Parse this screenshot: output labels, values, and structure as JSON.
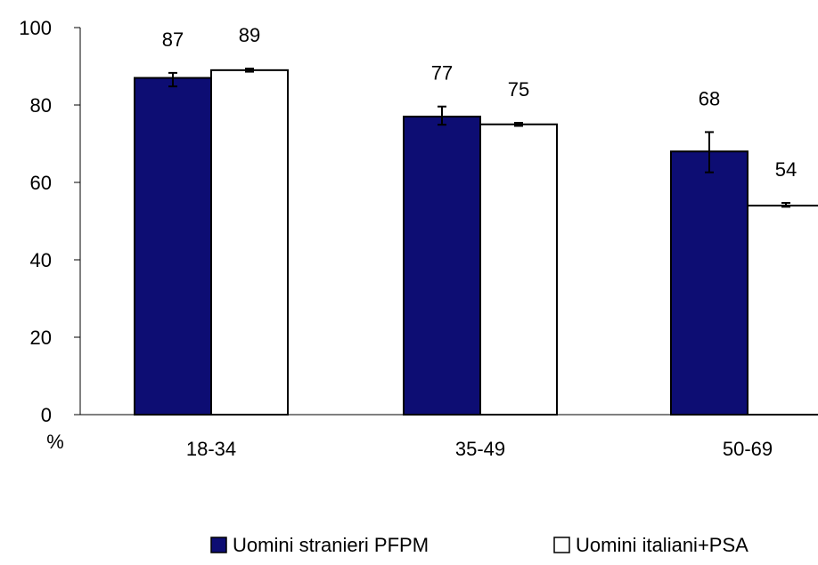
{
  "chart_data": {
    "type": "bar",
    "ylabel": "%",
    "ylim": [
      0,
      100
    ],
    "yticks": [
      "0",
      "20",
      "40",
      "60",
      "80",
      "100"
    ],
    "categories": [
      "18-34",
      "35-49",
      "50-69"
    ],
    "series": [
      {
        "name": "Uomini stranieri PFPM",
        "color": "#0d0d73",
        "values": [
          87,
          77,
          68
        ],
        "labels": [
          "87",
          "77",
          "68"
        ],
        "error_low": [
          84.8,
          74.9,
          62.6
        ],
        "error_high": [
          88.3,
          79.6,
          73.0
        ]
      },
      {
        "name": "Uomini italiani+PSA",
        "color": "#ffffff",
        "values": [
          89,
          75,
          54
        ],
        "labels": [
          "89",
          "75",
          "54"
        ],
        "error_low": [
          88.6,
          74.6,
          53.7
        ],
        "error_high": [
          89.4,
          75.4,
          54.7
        ]
      }
    ],
    "grid": false,
    "legend_position": "bottom"
  }
}
